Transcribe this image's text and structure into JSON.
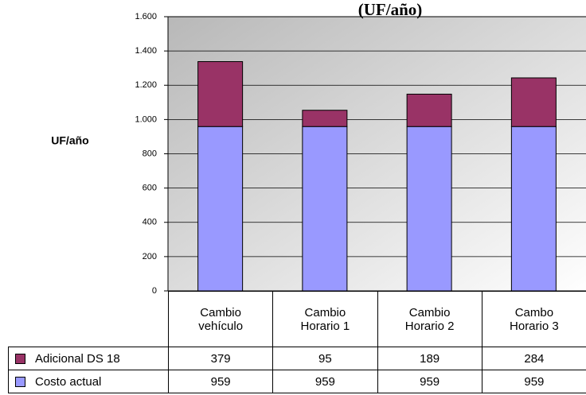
{
  "chart_data": {
    "type": "stacked-bar",
    "title": "(UF/año)",
    "y_label": "UF/año",
    "categories": [
      "Cambio vehículo",
      "Cambio Horario 1",
      "Cambio Horario 2",
      "Cambo Horario 3"
    ],
    "series": [
      {
        "name": "Costo actual",
        "color": "#9999ff",
        "values": [
          959,
          959,
          959,
          959
        ]
      },
      {
        "name": "Adicional DS 18",
        "color": "#993366",
        "values": [
          379,
          95,
          189,
          284
        ]
      }
    ],
    "ylim": [
      0,
      1600
    ],
    "yticks": [
      0,
      200,
      400,
      600,
      800,
      {
        "value": 1000,
        "label": "1.000"
      },
      {
        "value": 1200,
        "label": "1.200"
      },
      {
        "value": 1400,
        "label": "1.400"
      },
      {
        "value": 1600,
        "label": "1.600"
      }
    ],
    "grid": true
  }
}
